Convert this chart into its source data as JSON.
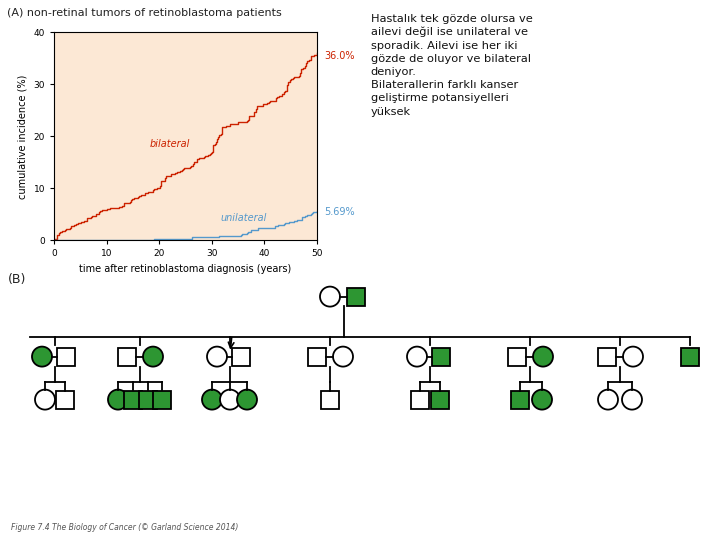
{
  "title_A": "(A) non-retinal tumors of retinoblastoma patients",
  "title_B": "(B)",
  "xlabel": "time after retinoblastoma diagnosis (years)",
  "ylabel": "cumulative incidence (%)",
  "xlim": [
    0,
    50
  ],
  "ylim": [
    0,
    40
  ],
  "xticks": [
    0,
    10,
    20,
    30,
    40,
    50
  ],
  "yticks": [
    0,
    10,
    20,
    30,
    40
  ],
  "bg_color": "#fce8d5",
  "bilateral_color": "#cc2200",
  "unilateral_color": "#5599cc",
  "bilateral_label": "bilateral",
  "unilateral_label": "unilateral",
  "bilateral_end_pct": "36.0%",
  "unilateral_end_pct": "5.69%",
  "text_right": "Hastalık tek gözde olursa ve\nailevi değil ise unilateral ve\nsporadik. Ailevi ise her iki\ngözde de oluyor ve bilateral\ndeniyor.\nBilaterallerin farklı kanser\ngeliştirme potansiyelleri\nyüksek",
  "caption": "Figure 7.4 The Biology of Cancer (© Garland Science 2014)",
  "green": "#2d9632",
  "white": "#ffffff",
  "black": "#000000"
}
